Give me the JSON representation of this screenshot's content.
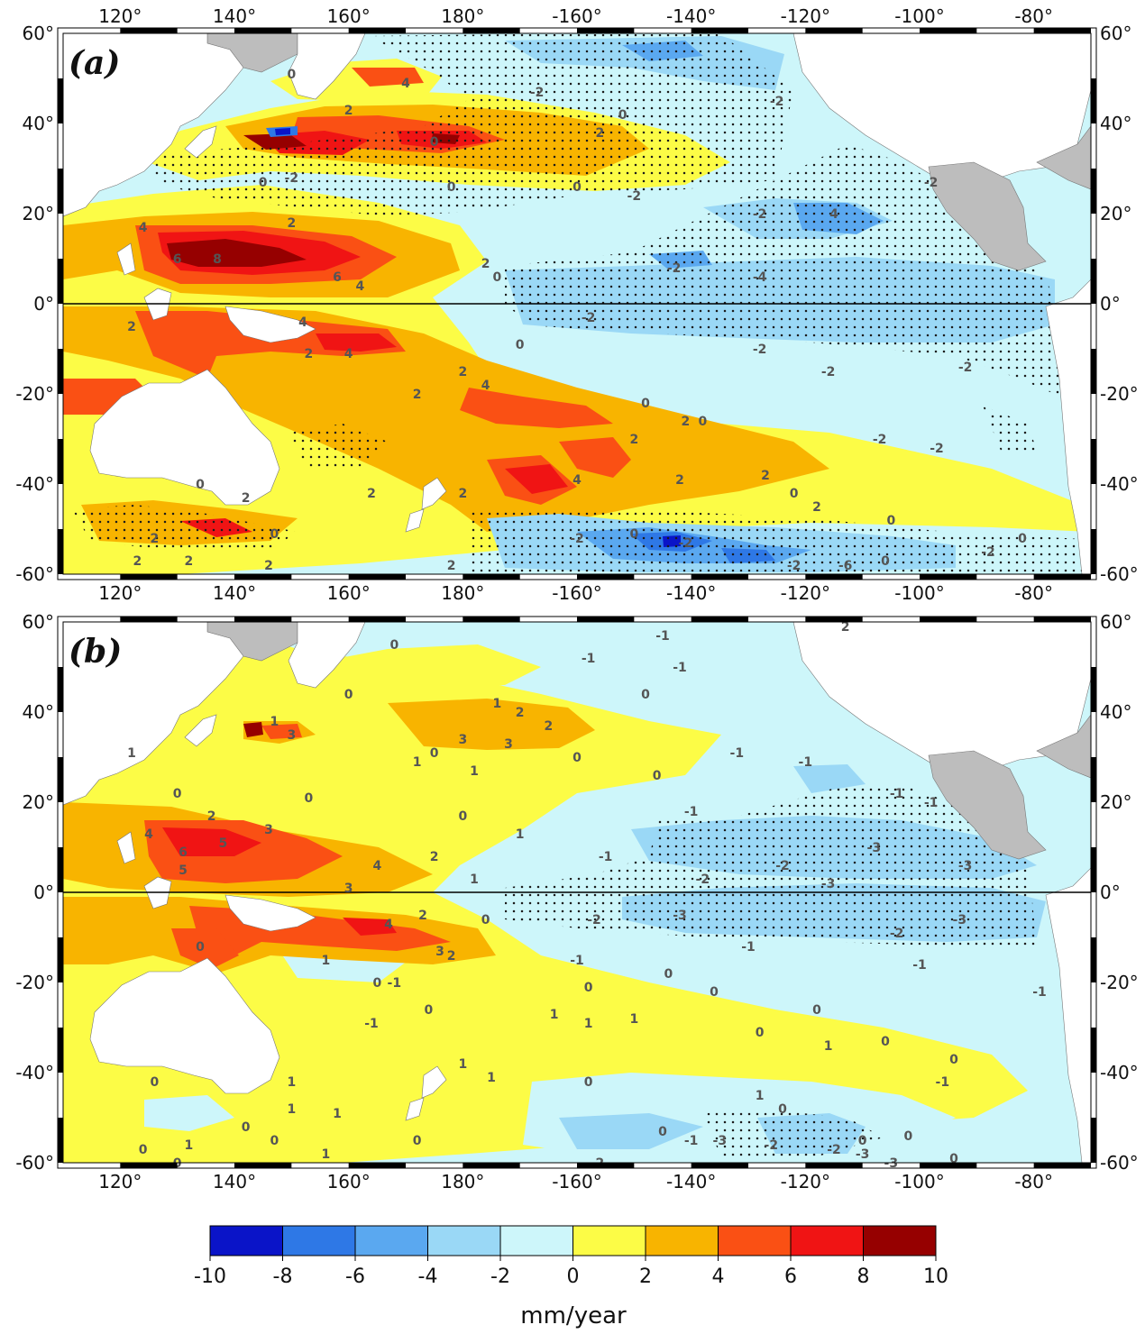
{
  "figure": {
    "lon_ticks": [
      "120°",
      "140°",
      "160°",
      "180°",
      "-160°",
      "-140°",
      "-120°",
      "-100°",
      "-80°"
    ],
    "lat_ticks": [
      "60°",
      "40°",
      "20°",
      "0°",
      "-20°",
      "-40°",
      "-60°"
    ]
  },
  "panels": [
    {
      "label": "(a)",
      "contour_labels": [
        {
          "t": "0",
          "lon": 150,
          "lat": 51
        },
        {
          "t": "4",
          "lon": 170,
          "lat": 49
        },
        {
          "t": "2",
          "lon": 160,
          "lat": 43
        },
        {
          "t": "0",
          "lon": 175,
          "lat": 36
        },
        {
          "t": "2",
          "lon": 204,
          "lat": 38
        },
        {
          "t": "0",
          "lon": 208,
          "lat": 42
        },
        {
          "t": "-2",
          "lon": 193,
          "lat": 47
        },
        {
          "t": "-2",
          "lon": 235,
          "lat": 45
        },
        {
          "t": "0",
          "lon": 145,
          "lat": 27
        },
        {
          "t": "-2",
          "lon": 150,
          "lat": 28
        },
        {
          "t": "0",
          "lon": 178,
          "lat": 26
        },
        {
          "t": "0",
          "lon": 200,
          "lat": 26
        },
        {
          "t": "-2",
          "lon": 210,
          "lat": 24
        },
        {
          "t": "-2",
          "lon": 232,
          "lat": 20
        },
        {
          "t": "4",
          "lon": 245,
          "lat": 20
        },
        {
          "t": "-2",
          "lon": 217,
          "lat": 8
        },
        {
          "t": "-4",
          "lon": 232,
          "lat": 6
        },
        {
          "t": "-2",
          "lon": 262,
          "lat": 27
        },
        {
          "t": "4",
          "lon": 124,
          "lat": 17
        },
        {
          "t": "2",
          "lon": 150,
          "lat": 18
        },
        {
          "t": "6",
          "lon": 130,
          "lat": 10
        },
        {
          "t": "8",
          "lon": 137,
          "lat": 10
        },
        {
          "t": "6",
          "lon": 158,
          "lat": 6
        },
        {
          "t": "4",
          "lon": 162,
          "lat": 4
        },
        {
          "t": "2",
          "lon": 184,
          "lat": 9
        },
        {
          "t": "0",
          "lon": 186,
          "lat": 6
        },
        {
          "t": "-2",
          "lon": 202,
          "lat": -3
        },
        {
          "t": "-2",
          "lon": 232,
          "lat": -10
        },
        {
          "t": "-2",
          "lon": 244,
          "lat": -15
        },
        {
          "t": "-2",
          "lon": 268,
          "lat": -14
        },
        {
          "t": "2",
          "lon": 122,
          "lat": -5
        },
        {
          "t": "4",
          "lon": 152,
          "lat": -4
        },
        {
          "t": "2",
          "lon": 153,
          "lat": -11
        },
        {
          "t": "4",
          "lon": 160,
          "lat": -11
        },
        {
          "t": "2",
          "lon": 180,
          "lat": -15
        },
        {
          "t": "0",
          "lon": 190,
          "lat": -9
        },
        {
          "t": "2",
          "lon": 172,
          "lat": -20
        },
        {
          "t": "4",
          "lon": 184,
          "lat": -18
        },
        {
          "t": "0",
          "lon": 212,
          "lat": -22
        },
        {
          "t": "2",
          "lon": 219,
          "lat": -26
        },
        {
          "t": "0",
          "lon": 222,
          "lat": -26
        },
        {
          "t": "2",
          "lon": 210,
          "lat": -30
        },
        {
          "t": "-2",
          "lon": 253,
          "lat": -30
        },
        {
          "t": "-2",
          "lon": 263,
          "lat": -32
        },
        {
          "t": "0",
          "lon": 134,
          "lat": -40
        },
        {
          "t": "2",
          "lon": 142,
          "lat": -43
        },
        {
          "t": "2",
          "lon": 164,
          "lat": -42
        },
        {
          "t": "2",
          "lon": 180,
          "lat": -42
        },
        {
          "t": "4",
          "lon": 200,
          "lat": -39
        },
        {
          "t": "2",
          "lon": 218,
          "lat": -39
        },
        {
          "t": "2",
          "lon": 233,
          "lat": -38
        },
        {
          "t": "0",
          "lon": 238,
          "lat": -42
        },
        {
          "t": "2",
          "lon": 242,
          "lat": -45
        },
        {
          "t": "0",
          "lon": 255,
          "lat": -48
        },
        {
          "t": "0",
          "lon": 147,
          "lat": -51
        },
        {
          "t": "2",
          "lon": 126,
          "lat": -52
        },
        {
          "t": "2",
          "lon": 132,
          "lat": -57
        },
        {
          "t": "2",
          "lon": 123,
          "lat": -57
        },
        {
          "t": "2",
          "lon": 146,
          "lat": -58
        },
        {
          "t": "2",
          "lon": 178,
          "lat": -58
        },
        {
          "t": "-2",
          "lon": 200,
          "lat": -52
        },
        {
          "t": "0",
          "lon": 210,
          "lat": -51
        },
        {
          "t": "-2",
          "lon": 219,
          "lat": -53
        },
        {
          "t": "-2",
          "lon": 238,
          "lat": -58
        },
        {
          "t": "-6",
          "lon": 247,
          "lat": -58
        },
        {
          "t": "0",
          "lon": 254,
          "lat": -57
        },
        {
          "t": "-2",
          "lon": 272,
          "lat": -55
        },
        {
          "t": "0",
          "lon": 278,
          "lat": -52
        }
      ]
    },
    {
      "label": "(b)",
      "contour_labels": [
        {
          "t": "0",
          "lon": 168,
          "lat": 55
        },
        {
          "t": "-1",
          "lon": 202,
          "lat": 52
        },
        {
          "t": "-1",
          "lon": 215,
          "lat": 57
        },
        {
          "t": "2",
          "lon": 247,
          "lat": 59
        },
        {
          "t": "0",
          "lon": 160,
          "lat": 44
        },
        {
          "t": "1",
          "lon": 186,
          "lat": 42
        },
        {
          "t": "2",
          "lon": 190,
          "lat": 40
        },
        {
          "t": "2",
          "lon": 195,
          "lat": 37
        },
        {
          "t": "0",
          "lon": 212,
          "lat": 44
        },
        {
          "t": "-1",
          "lon": 218,
          "lat": 50
        },
        {
          "t": "-1",
          "lon": 240,
          "lat": 29
        },
        {
          "t": "1",
          "lon": 147,
          "lat": 38
        },
        {
          "t": "3",
          "lon": 150,
          "lat": 35
        },
        {
          "t": "3",
          "lon": 180,
          "lat": 34
        },
        {
          "t": "3",
          "lon": 188,
          "lat": 33
        },
        {
          "t": "1",
          "lon": 172,
          "lat": 29
        },
        {
          "t": "1",
          "lon": 182,
          "lat": 27
        },
        {
          "t": "0",
          "lon": 175,
          "lat": 31
        },
        {
          "t": "0",
          "lon": 200,
          "lat": 30
        },
        {
          "t": "0",
          "lon": 214,
          "lat": 26
        },
        {
          "t": "-1",
          "lon": 228,
          "lat": 31
        },
        {
          "t": "-1",
          "lon": 256,
          "lat": 22
        },
        {
          "t": "-1",
          "lon": 262,
          "lat": 20
        },
        {
          "t": "1",
          "lon": 122,
          "lat": 31
        },
        {
          "t": "0",
          "lon": 130,
          "lat": 22
        },
        {
          "t": "2",
          "lon": 136,
          "lat": 17
        },
        {
          "t": "0",
          "lon": 153,
          "lat": 21
        },
        {
          "t": "0",
          "lon": 180,
          "lat": 17
        },
        {
          "t": "1",
          "lon": 190,
          "lat": 13
        },
        {
          "t": "-1",
          "lon": 220,
          "lat": 18
        },
        {
          "t": "4",
          "lon": 125,
          "lat": 13
        },
        {
          "t": "6",
          "lon": 131,
          "lat": 9
        },
        {
          "t": "5",
          "lon": 138,
          "lat": 11
        },
        {
          "t": "3",
          "lon": 146,
          "lat": 14
        },
        {
          "t": "5",
          "lon": 131,
          "lat": 5
        },
        {
          "t": "4",
          "lon": 165,
          "lat": 6
        },
        {
          "t": "2",
          "lon": 175,
          "lat": 8
        },
        {
          "t": "3",
          "lon": 160,
          "lat": 1
        },
        {
          "t": "1",
          "lon": 182,
          "lat": 3
        },
        {
          "t": "-1",
          "lon": 205,
          "lat": 8
        },
        {
          "t": "-2",
          "lon": 222,
          "lat": 3
        },
        {
          "t": "-2",
          "lon": 236,
          "lat": 6
        },
        {
          "t": "-3",
          "lon": 252,
          "lat": 10
        },
        {
          "t": "-3",
          "lon": 268,
          "lat": 6
        },
        {
          "t": "-3",
          "lon": 244,
          "lat": 2
        },
        {
          "t": "-2",
          "lon": 203,
          "lat": -6
        },
        {
          "t": "-3",
          "lon": 218,
          "lat": -5
        },
        {
          "t": "-2",
          "lon": 256,
          "lat": -9
        },
        {
          "t": "-3",
          "lon": 267,
          "lat": -6
        },
        {
          "t": "-1",
          "lon": 230,
          "lat": -12
        },
        {
          "t": "-1",
          "lon": 260,
          "lat": -16
        },
        {
          "t": "2",
          "lon": 173,
          "lat": -5
        },
        {
          "t": "4",
          "lon": 167,
          "lat": -7
        },
        {
          "t": "3",
          "lon": 176,
          "lat": -13
        },
        {
          "t": "2",
          "lon": 178,
          "lat": -14
        },
        {
          "t": "0",
          "lon": 184,
          "lat": -6
        },
        {
          "t": "0",
          "lon": 134,
          "lat": -12
        },
        {
          "t": "-1",
          "lon": 168,
          "lat": -20
        },
        {
          "t": "-1",
          "lon": 200,
          "lat": -15
        },
        {
          "t": "1",
          "lon": 156,
          "lat": -15
        },
        {
          "t": "0",
          "lon": 165,
          "lat": -20
        },
        {
          "t": "0",
          "lon": 174,
          "lat": -26
        },
        {
          "t": "0",
          "lon": 202,
          "lat": -21
        },
        {
          "t": "0",
          "lon": 216,
          "lat": -18
        },
        {
          "t": "0",
          "lon": 224,
          "lat": -22
        },
        {
          "t": "0",
          "lon": 242,
          "lat": -26
        },
        {
          "t": "-1",
          "lon": 281,
          "lat": -22
        },
        {
          "t": "-1",
          "lon": 164,
          "lat": -29
        },
        {
          "t": "1",
          "lon": 196,
          "lat": -27
        },
        {
          "t": "1",
          "lon": 202,
          "lat": -29
        },
        {
          "t": "1",
          "lon": 210,
          "lat": -28
        },
        {
          "t": "0",
          "lon": 232,
          "lat": -31
        },
        {
          "t": "0",
          "lon": 254,
          "lat": -33
        },
        {
          "t": "0",
          "lon": 266,
          "lat": -37
        },
        {
          "t": "1",
          "lon": 244,
          "lat": -34
        },
        {
          "t": "1",
          "lon": 180,
          "lat": -38
        },
        {
          "t": "1",
          "lon": 185,
          "lat": -41
        },
        {
          "t": "0",
          "lon": 202,
          "lat": -42
        },
        {
          "t": "1",
          "lon": 232,
          "lat": -45
        },
        {
          "t": "0",
          "lon": 236,
          "lat": -48
        },
        {
          "t": "0",
          "lon": 126,
          "lat": -42
        },
        {
          "t": "1",
          "lon": 150,
          "lat": -42
        },
        {
          "t": "-1",
          "lon": 264,
          "lat": -42
        },
        {
          "t": "1",
          "lon": 150,
          "lat": -48
        },
        {
          "t": "1",
          "lon": 158,
          "lat": -49
        },
        {
          "t": "0",
          "lon": 142,
          "lat": -52
        },
        {
          "t": "0",
          "lon": 172,
          "lat": -55
        },
        {
          "t": "0",
          "lon": 147,
          "lat": -55
        },
        {
          "t": "1",
          "lon": 132,
          "lat": -56
        },
        {
          "t": "0",
          "lon": 124,
          "lat": -57
        },
        {
          "t": "0",
          "lon": 130,
          "lat": -60
        },
        {
          "t": "1",
          "lon": 156,
          "lat": -58
        },
        {
          "t": "2",
          "lon": 204,
          "lat": -60
        },
        {
          "t": "0",
          "lon": 215,
          "lat": -53
        },
        {
          "t": "-1",
          "lon": 220,
          "lat": -55
        },
        {
          "t": "-3",
          "lon": 225,
          "lat": -55
        },
        {
          "t": "-2",
          "lon": 234,
          "lat": -56
        },
        {
          "t": "-2",
          "lon": 245,
          "lat": -57
        },
        {
          "t": "-3",
          "lon": 250,
          "lat": -58
        },
        {
          "t": "0",
          "lon": 250,
          "lat": -55
        },
        {
          "t": "0",
          "lon": 258,
          "lat": -54
        },
        {
          "t": "0",
          "lon": 266,
          "lat": -59
        },
        {
          "t": "-3",
          "lon": 255,
          "lat": -60
        }
      ]
    }
  ],
  "colorbar": {
    "ticks": [
      "-10",
      "-8",
      "-6",
      "-4",
      "-2",
      "0",
      "2",
      "4",
      "6",
      "8",
      "10"
    ],
    "colors": [
      "#0a14c8",
      "#2e78e6",
      "#5aa8f0",
      "#9ad8f6",
      "#cdf6fa",
      "#fcfc46",
      "#f8b400",
      "#fa5014",
      "#f01414",
      "#960000"
    ],
    "unit": "mm/year"
  },
  "colors": {
    "land": "#bdbdbd",
    "c_-10_-8": "#0a14c8",
    "c_-8_-6": "#2e78e6",
    "c_-6_-4": "#5aa8f0",
    "c_-4_-2": "#9ad8f6",
    "c_-2_0": "#cdf6fa",
    "c_0_2": "#fcfc46",
    "c_2_4": "#f8b400",
    "c_4_6": "#fa5014",
    "c_6_8": "#f01414",
    "c_8_10": "#960000"
  }
}
